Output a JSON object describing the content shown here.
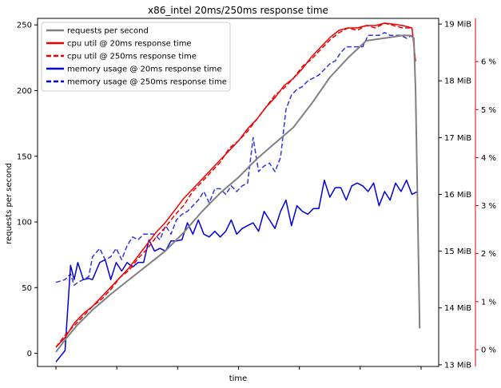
{
  "chart_data": {
    "type": "line",
    "title": "x86_intel 20ms/250ms response time",
    "xlabel": "time",
    "ylabel": "requests per second",
    "x_ticks": [
      "",
      "",
      "",
      "",
      "",
      "",
      ""
    ],
    "ylim": [
      -10,
      255
    ],
    "yticks": [
      0,
      50,
      100,
      150,
      200,
      250
    ],
    "y2": {
      "label": "",
      "ylim": [
        12.97,
        19.1
      ],
      "ticks": [
        13,
        14,
        15,
        16,
        17,
        18,
        19
      ],
      "tick_labels": [
        "13 MiB",
        "14 MiB",
        "15 MiB",
        "16 MiB",
        "17 MiB",
        "18 MiB",
        "19 MiB"
      ],
      "color": "#000000"
    },
    "y3": {
      "label": "",
      "ylim": [
        -0.35,
        6.9
      ],
      "ticks": [
        0,
        1,
        2,
        3,
        4,
        5,
        6
      ],
      "tick_labels": [
        "0 %",
        "1 %",
        "2 %",
        "3 %",
        "4 %",
        "5 %",
        "6 %"
      ],
      "color": "#dd0000"
    },
    "legend": {
      "placement": "top-left"
    },
    "grid": false,
    "series": [
      {
        "name": "requests per second",
        "axis": "y",
        "color": "#808080",
        "style": "solid",
        "x": [
          0,
          3,
          6,
          10,
          15,
          20,
          25,
          30,
          35,
          40,
          45,
          50,
          55,
          60,
          65,
          70,
          75,
          80,
          85,
          90,
          95,
          97,
          98,
          98.5,
          99,
          99.3,
          99.6
        ],
        "y": [
          1,
          12,
          22,
          33,
          45,
          56,
          67,
          78,
          92,
          108,
          122,
          134,
          148,
          160,
          172,
          190,
          210,
          225,
          238,
          240,
          242,
          242,
          240,
          200,
          120,
          70,
          19
        ]
      },
      {
        "name": "cpu util @ 20ms response time",
        "axis": "y3",
        "color": "#ee0000",
        "style": "solid",
        "x": [
          0,
          2.5,
          5,
          7.5,
          10,
          12.5,
          15,
          17.5,
          20,
          22.5,
          25,
          27.5,
          30,
          32.5,
          35,
          37.5,
          40,
          42.5,
          45,
          47.5,
          50,
          52.5,
          55,
          57.5,
          60,
          62.5,
          65,
          67.5,
          70,
          72.5,
          75,
          77.5,
          80,
          82.5,
          85,
          87.5,
          90,
          92.5,
          95,
          97.5,
          98.5
        ],
        "y": [
          0.05,
          0.25,
          0.55,
          0.75,
          0.9,
          1.1,
          1.3,
          1.5,
          1.7,
          1.95,
          2.2,
          2.45,
          2.65,
          2.9,
          3.15,
          3.35,
          3.55,
          3.75,
          3.95,
          4.15,
          4.35,
          4.6,
          4.8,
          5.05,
          5.25,
          5.5,
          5.65,
          5.85,
          6.1,
          6.3,
          6.5,
          6.65,
          6.7,
          6.7,
          6.75,
          6.75,
          6.8,
          6.78,
          6.75,
          6.7,
          6.0
        ]
      },
      {
        "name": "cpu util @ 250ms response time",
        "axis": "y3",
        "color": "#ee0000",
        "style": "dashed",
        "x": [
          0,
          2.5,
          5,
          7.5,
          10,
          12.5,
          15,
          17.5,
          20,
          22.5,
          25,
          27.5,
          30,
          32.5,
          35,
          37.5,
          40,
          42.5,
          45,
          47.5,
          50,
          52.5,
          55,
          57.5,
          60,
          62.5,
          65,
          67.5,
          70,
          72.5,
          75,
          77.5,
          80,
          82.5,
          85,
          87.5,
          90,
          92.5,
          95,
          97.5
        ],
        "y": [
          0.05,
          0.3,
          0.5,
          0.7,
          0.9,
          1.05,
          1.25,
          1.5,
          1.65,
          1.9,
          2.1,
          2.35,
          2.55,
          2.8,
          3.0,
          3.3,
          3.5,
          3.7,
          3.9,
          4.2,
          4.35,
          4.55,
          4.8,
          5.05,
          5.3,
          5.45,
          5.65,
          5.9,
          6.05,
          6.25,
          6.45,
          6.6,
          6.7,
          6.65,
          6.75,
          6.7,
          6.8,
          6.75,
          6.7,
          6.7
        ]
      },
      {
        "name": "memory usage @ 20ms response time",
        "axis": "y2",
        "color": "#0000dd",
        "style": "solid",
        "x": [
          0,
          2.5,
          4,
          5,
          6,
          7.5,
          9,
          10,
          12,
          13.5,
          15,
          16.5,
          18,
          19.5,
          21,
          22.5,
          24,
          25.5,
          27,
          28.5,
          30,
          31.5,
          33,
          34.5,
          36,
          37.5,
          39,
          40.5,
          42,
          43.5,
          45,
          46.5,
          48,
          49.5,
          51,
          52.5,
          54,
          55.5,
          57,
          58.5,
          60,
          61.5,
          63,
          64.5,
          66,
          67.5,
          69,
          70.5,
          72,
          73.5,
          75,
          76.5,
          78,
          79.5,
          81,
          82.5,
          84,
          85.5,
          87,
          88.5,
          90,
          91.5,
          93,
          94.5,
          96,
          97.5,
          99
        ],
        "y": [
          13.05,
          13.25,
          14.75,
          14.5,
          14.8,
          14.5,
          14.52,
          14.5,
          14.8,
          14.85,
          14.5,
          14.8,
          14.65,
          14.8,
          14.72,
          14.8,
          14.8,
          15.2,
          15.0,
          15.05,
          15.0,
          15.18,
          15.18,
          15.2,
          15.5,
          15.3,
          15.55,
          15.3,
          15.25,
          15.35,
          15.25,
          15.35,
          15.55,
          15.3,
          15.4,
          15.45,
          15.5,
          15.35,
          15.7,
          15.55,
          15.4,
          15.7,
          15.9,
          15.45,
          15.8,
          15.7,
          15.65,
          15.75,
          15.75,
          16.25,
          15.95,
          16.12,
          16.12,
          15.9,
          16.15,
          16.2,
          16.15,
          16.05,
          16.2,
          15.8,
          16.05,
          15.9,
          16.2,
          16.05,
          16.25,
          16.0,
          16.05
        ]
      },
      {
        "name": "memory usage @ 250ms response time",
        "axis": "y2",
        "color": "#0000dd",
        "style": "dashed",
        "x": [
          0,
          2.5,
          4,
          5,
          6,
          7.5,
          9,
          10,
          12,
          13.5,
          15,
          16.5,
          18,
          19.5,
          21,
          22.5,
          24,
          25.5,
          27,
          28.5,
          30,
          31.5,
          33,
          34.5,
          36,
          37.5,
          39,
          40.5,
          42,
          43.5,
          45,
          46.5,
          48,
          49.5,
          51,
          52.5,
          54,
          55.5,
          57,
          58.5,
          60,
          61.5,
          63,
          64.5,
          66,
          67.5,
          69,
          70.5,
          72,
          73.5,
          75,
          76.5,
          78,
          79.5,
          81,
          82.5,
          84,
          85.5,
          87,
          88.5,
          90,
          91.5,
          93,
          94.5,
          96,
          97.5
        ],
        "y": [
          14.45,
          14.5,
          14.6,
          14.4,
          14.45,
          14.5,
          14.55,
          14.9,
          15.05,
          14.85,
          14.9,
          15.05,
          14.85,
          15.1,
          15.25,
          15.2,
          15.3,
          15.3,
          15.3,
          15.2,
          15.45,
          15.3,
          15.55,
          15.65,
          15.7,
          15.8,
          15.9,
          16.05,
          15.85,
          16.1,
          16.1,
          16.0,
          16.15,
          16.05,
          16.15,
          16.2,
          17.0,
          16.4,
          16.5,
          16.55,
          16.4,
          16.65,
          17.5,
          17.75,
          17.85,
          17.9,
          18.0,
          18.05,
          18.1,
          18.2,
          18.3,
          18.35,
          18.5,
          18.6,
          18.6,
          18.6,
          18.6,
          18.8,
          18.8,
          18.8,
          18.85,
          18.8,
          18.8,
          18.8,
          18.75,
          18.8
        ]
      }
    ]
  }
}
